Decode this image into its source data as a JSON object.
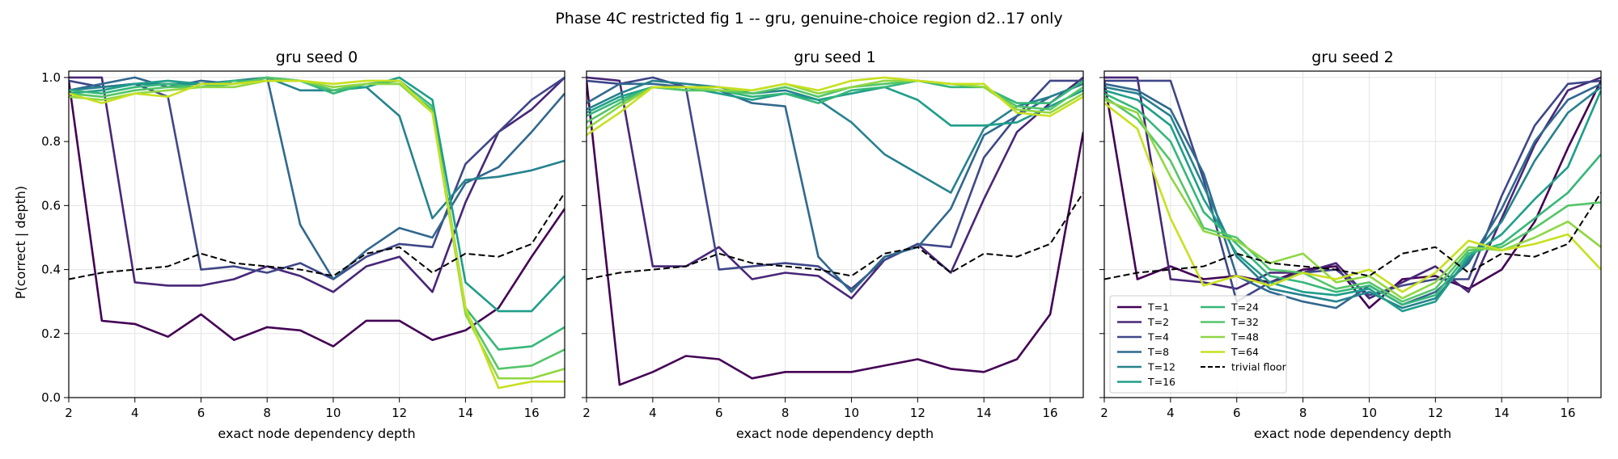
{
  "suptitle": "Phase 4C restricted fig 1 -- gru, genuine-choice region d2..17 only",
  "shared": {
    "xlabel": "exact node dependency depth",
    "ylabel": "P(correct | depth)",
    "xlim": [
      2,
      17
    ],
    "ylim": [
      0,
      1.02
    ],
    "xticks": [
      2,
      4,
      6,
      8,
      10,
      12,
      14,
      16
    ],
    "yticks": [
      0.0,
      0.2,
      0.4,
      0.6,
      0.8,
      1.0
    ],
    "ytick_labels": [
      "0.0",
      "0.2",
      "0.4",
      "0.6",
      "0.8",
      "1.0"
    ],
    "grid": true,
    "legend_panel": 2,
    "legend_placement": "lower-left"
  },
  "legend": [
    {
      "label": "T=1",
      "color": "#440154",
      "dash": false
    },
    {
      "label": "T=2",
      "color": "#482677",
      "dash": false
    },
    {
      "label": "T=4",
      "color": "#3f4788",
      "dash": false
    },
    {
      "label": "T=8",
      "color": "#31688e",
      "dash": false
    },
    {
      "label": "T=12",
      "color": "#26828e",
      "dash": false
    },
    {
      "label": "T=16",
      "color": "#1f9e89",
      "dash": false
    },
    {
      "label": "T=24",
      "color": "#35b779",
      "dash": false
    },
    {
      "label": "T=32",
      "color": "#54c568",
      "dash": false
    },
    {
      "label": "T=48",
      "color": "#8fd744",
      "dash": false
    },
    {
      "label": "T=64",
      "color": "#c8e020",
      "dash": false
    },
    {
      "label": "trivial floor",
      "color": "#000000",
      "dash": true
    }
  ],
  "chart_data": [
    {
      "type": "line",
      "title": "gru  seed 0",
      "x": [
        2,
        3,
        4,
        5,
        6,
        7,
        8,
        9,
        10,
        11,
        12,
        13,
        14,
        15,
        16,
        17
      ],
      "series": [
        {
          "name": "T=1",
          "color": "#440154",
          "values": [
            0.99,
            0.24,
            0.23,
            0.19,
            0.26,
            0.18,
            0.22,
            0.21,
            0.16,
            0.24,
            0.24,
            0.18,
            0.21,
            0.28,
            0.44,
            0.59
          ]
        },
        {
          "name": "T=2",
          "color": "#482677",
          "values": [
            1.0,
            1.0,
            0.36,
            0.35,
            0.35,
            0.37,
            0.41,
            0.38,
            0.33,
            0.41,
            0.44,
            0.33,
            0.61,
            0.83,
            0.9,
            1.0
          ]
        },
        {
          "name": "T=4",
          "color": "#3f4788",
          "values": [
            0.99,
            0.97,
            0.98,
            0.94,
            0.4,
            0.41,
            0.39,
            0.42,
            0.37,
            0.44,
            0.48,
            0.47,
            0.73,
            0.83,
            0.93,
            1.0
          ]
        },
        {
          "name": "T=8",
          "color": "#31688e",
          "values": [
            0.96,
            0.98,
            1.0,
            0.97,
            0.99,
            0.98,
            1.0,
            0.54,
            0.37,
            0.46,
            0.53,
            0.5,
            0.67,
            0.72,
            0.83,
            0.95
          ]
        },
        {
          "name": "T=12",
          "color": "#26828e",
          "values": [
            0.96,
            0.97,
            0.98,
            0.98,
            0.98,
            0.99,
            1.0,
            0.96,
            0.96,
            0.97,
            0.88,
            0.56,
            0.68,
            0.69,
            0.71,
            0.74
          ]
        },
        {
          "name": "T=16",
          "color": "#1f9e89",
          "values": [
            0.95,
            0.96,
            0.98,
            0.99,
            0.98,
            0.98,
            1.0,
            0.99,
            0.96,
            0.97,
            1.0,
            0.93,
            0.36,
            0.27,
            0.27,
            0.38
          ]
        },
        {
          "name": "T=24",
          "color": "#35b779",
          "values": [
            0.96,
            0.95,
            0.97,
            0.98,
            0.97,
            0.99,
            0.99,
            0.99,
            0.95,
            0.98,
            0.99,
            0.91,
            0.28,
            0.15,
            0.16,
            0.22
          ]
        },
        {
          "name": "T=32",
          "color": "#54c568",
          "values": [
            0.95,
            0.94,
            0.96,
            0.97,
            0.97,
            0.98,
            1.0,
            0.99,
            0.96,
            0.98,
            0.98,
            0.9,
            0.27,
            0.09,
            0.1,
            0.15
          ]
        },
        {
          "name": "T=48",
          "color": "#8fd744",
          "values": [
            0.94,
            0.93,
            0.95,
            0.96,
            0.97,
            0.97,
            0.99,
            0.99,
            0.97,
            0.98,
            0.98,
            0.89,
            0.26,
            0.06,
            0.06,
            0.09
          ]
        },
        {
          "name": "T=64",
          "color": "#c8e020",
          "values": [
            0.95,
            0.92,
            0.95,
            0.94,
            0.98,
            0.98,
            0.99,
            0.99,
            0.98,
            0.99,
            0.99,
            0.89,
            0.28,
            0.03,
            0.05,
            0.05
          ]
        },
        {
          "name": "trivial floor",
          "color": "#000000",
          "dash": true,
          "values": [
            0.37,
            0.39,
            0.4,
            0.41,
            0.45,
            0.42,
            0.41,
            0.4,
            0.38,
            0.45,
            0.47,
            0.39,
            0.45,
            0.44,
            0.48,
            0.64
          ]
        }
      ]
    },
    {
      "type": "line",
      "title": "gru  seed 1",
      "x": [
        2,
        3,
        4,
        5,
        6,
        7,
        8,
        9,
        10,
        11,
        12,
        13,
        14,
        15,
        16,
        17
      ],
      "series": [
        {
          "name": "T=1",
          "color": "#440154",
          "values": [
            0.99,
            0.04,
            0.08,
            0.13,
            0.12,
            0.06,
            0.08,
            0.08,
            0.08,
            0.1,
            0.12,
            0.09,
            0.08,
            0.12,
            0.26,
            0.83
          ]
        },
        {
          "name": "T=2",
          "color": "#482677",
          "values": [
            1.0,
            0.99,
            0.41,
            0.41,
            0.47,
            0.37,
            0.39,
            0.38,
            0.31,
            0.43,
            0.48,
            0.39,
            0.62,
            0.83,
            0.92,
            1.0
          ]
        },
        {
          "name": "T=4",
          "color": "#3f4788",
          "values": [
            0.99,
            0.98,
            1.0,
            0.97,
            0.4,
            0.41,
            0.42,
            0.41,
            0.34,
            0.43,
            0.48,
            0.47,
            0.75,
            0.88,
            0.99,
            0.99
          ]
        },
        {
          "name": "T=8",
          "color": "#31688e",
          "values": [
            0.92,
            0.98,
            0.98,
            0.97,
            0.96,
            0.92,
            0.91,
            0.44,
            0.33,
            0.44,
            0.47,
            0.59,
            0.82,
            0.88,
            0.94,
            0.98
          ]
        },
        {
          "name": "T=12",
          "color": "#26828e",
          "values": [
            0.9,
            0.95,
            0.99,
            0.98,
            0.97,
            0.95,
            0.96,
            0.93,
            0.86,
            0.76,
            0.7,
            0.64,
            0.84,
            0.91,
            0.94,
            0.98
          ]
        },
        {
          "name": "T=16",
          "color": "#1f9e89",
          "values": [
            0.89,
            0.94,
            0.97,
            0.97,
            0.95,
            0.93,
            0.95,
            0.93,
            0.95,
            0.97,
            0.93,
            0.85,
            0.85,
            0.86,
            0.91,
            0.96
          ]
        },
        {
          "name": "T=24",
          "color": "#35b779",
          "values": [
            0.88,
            0.93,
            0.97,
            0.96,
            0.96,
            0.94,
            0.95,
            0.92,
            0.96,
            0.97,
            0.99,
            0.97,
            0.97,
            0.92,
            0.92,
            0.99
          ]
        },
        {
          "name": "T=32",
          "color": "#54c568",
          "values": [
            0.86,
            0.92,
            0.97,
            0.96,
            0.96,
            0.95,
            0.97,
            0.94,
            0.97,
            0.98,
            0.99,
            0.98,
            0.97,
            0.91,
            0.9,
            0.97
          ]
        },
        {
          "name": "T=48",
          "color": "#8fd744",
          "values": [
            0.84,
            0.91,
            0.97,
            0.97,
            0.96,
            0.96,
            0.98,
            0.95,
            0.97,
            0.99,
            0.99,
            0.98,
            0.97,
            0.9,
            0.89,
            0.95
          ]
        },
        {
          "name": "T=64",
          "color": "#c8e020",
          "values": [
            0.82,
            0.89,
            0.97,
            0.97,
            0.97,
            0.96,
            0.98,
            0.96,
            0.99,
            1.0,
            0.99,
            0.98,
            0.98,
            0.89,
            0.88,
            0.94
          ]
        },
        {
          "name": "trivial floor",
          "color": "#000000",
          "dash": true,
          "values": [
            0.37,
            0.39,
            0.4,
            0.41,
            0.45,
            0.42,
            0.41,
            0.4,
            0.38,
            0.45,
            0.47,
            0.39,
            0.45,
            0.44,
            0.48,
            0.64
          ]
        }
      ]
    },
    {
      "type": "line",
      "title": "gru  seed 2",
      "x": [
        2,
        3,
        4,
        5,
        6,
        7,
        8,
        9,
        10,
        11,
        12,
        13,
        14,
        15,
        16,
        17
      ],
      "series": [
        {
          "name": "T=1",
          "color": "#440154",
          "values": [
            0.99,
            0.37,
            0.41,
            0.37,
            0.38,
            0.36,
            0.4,
            0.41,
            0.28,
            0.37,
            0.38,
            0.34,
            0.4,
            0.55,
            0.78,
            0.99
          ]
        },
        {
          "name": "T=2",
          "color": "#482677",
          "values": [
            1.0,
            1.0,
            0.37,
            0.36,
            0.34,
            0.39,
            0.39,
            0.42,
            0.31,
            0.36,
            0.41,
            0.33,
            0.56,
            0.79,
            0.96,
            1.0
          ]
        },
        {
          "name": "T=4",
          "color": "#3f4788",
          "values": [
            0.99,
            0.99,
            0.99,
            0.68,
            0.3,
            0.36,
            0.39,
            0.4,
            0.32,
            0.35,
            0.37,
            0.37,
            0.63,
            0.85,
            0.98,
            0.99
          ]
        },
        {
          "name": "T=8",
          "color": "#31688e",
          "values": [
            0.98,
            0.96,
            0.9,
            0.7,
            0.38,
            0.33,
            0.3,
            0.28,
            0.35,
            0.29,
            0.33,
            0.42,
            0.59,
            0.8,
            0.93,
            0.98
          ]
        },
        {
          "name": "T=12",
          "color": "#26828e",
          "values": [
            0.97,
            0.95,
            0.88,
            0.66,
            0.44,
            0.34,
            0.32,
            0.3,
            0.33,
            0.28,
            0.31,
            0.43,
            0.55,
            0.74,
            0.89,
            0.97
          ]
        },
        {
          "name": "T=16",
          "color": "#1f9e89",
          "values": [
            0.96,
            0.93,
            0.85,
            0.62,
            0.45,
            0.36,
            0.33,
            0.32,
            0.34,
            0.27,
            0.3,
            0.44,
            0.51,
            0.62,
            0.72,
            0.96
          ]
        },
        {
          "name": "T=24",
          "color": "#35b779",
          "values": [
            0.95,
            0.9,
            0.8,
            0.58,
            0.48,
            0.38,
            0.36,
            0.33,
            0.35,
            0.29,
            0.32,
            0.45,
            0.48,
            0.56,
            0.64,
            0.76
          ]
        },
        {
          "name": "T=32",
          "color": "#54c568",
          "values": [
            0.94,
            0.87,
            0.74,
            0.53,
            0.5,
            0.4,
            0.39,
            0.34,
            0.36,
            0.3,
            0.34,
            0.46,
            0.47,
            0.53,
            0.6,
            0.61
          ]
        },
        {
          "name": "T=48",
          "color": "#8fd744",
          "values": [
            0.93,
            0.89,
            0.69,
            0.52,
            0.49,
            0.42,
            0.45,
            0.36,
            0.38,
            0.31,
            0.36,
            0.47,
            0.46,
            0.5,
            0.55,
            0.47
          ]
        },
        {
          "name": "T=64",
          "color": "#c8e020",
          "values": [
            0.92,
            0.84,
            0.56,
            0.35,
            0.38,
            0.35,
            0.39,
            0.37,
            0.4,
            0.33,
            0.39,
            0.49,
            0.46,
            0.48,
            0.51,
            0.4
          ]
        },
        {
          "name": "trivial floor",
          "color": "#000000",
          "dash": true,
          "values": [
            0.37,
            0.39,
            0.4,
            0.41,
            0.45,
            0.42,
            0.41,
            0.4,
            0.38,
            0.45,
            0.47,
            0.39,
            0.45,
            0.44,
            0.48,
            0.64
          ]
        }
      ]
    }
  ]
}
